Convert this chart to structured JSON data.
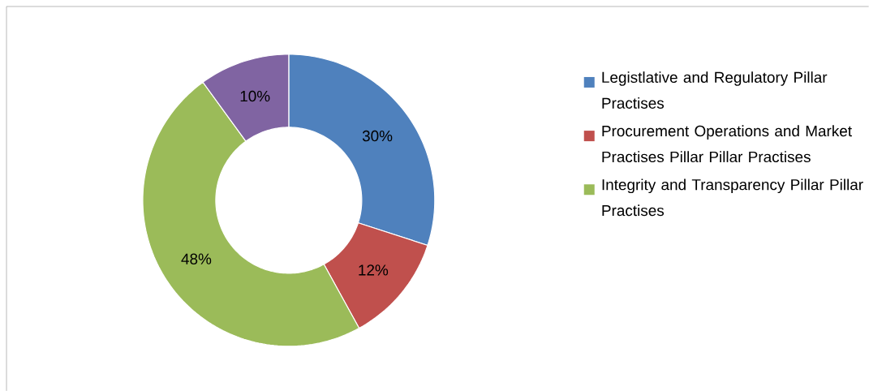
{
  "chart_data": {
    "type": "donut",
    "categories": [
      "Legistlative and Regulatory Pillar Practises",
      "Procurement Operations and Market Practises  Pillar  Pillar Practises",
      "Integrity  and Transparency Pillar  Pillar Practises",
      null
    ],
    "values": [
      30,
      12,
      48,
      10
    ],
    "value_labels": [
      "30%",
      "12%",
      "48%",
      "10%"
    ],
    "colors": [
      "#4f81bd",
      "#c0504d",
      "#9bbb59",
      "#8064a2"
    ],
    "legend": "right"
  }
}
